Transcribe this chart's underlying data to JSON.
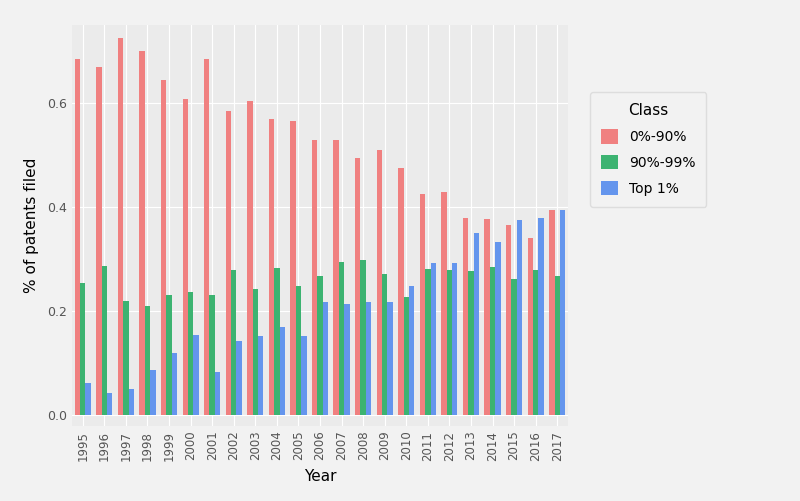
{
  "years": [
    1995,
    1996,
    1997,
    1998,
    1999,
    2000,
    2001,
    2002,
    2003,
    2004,
    2005,
    2006,
    2007,
    2008,
    2009,
    2010,
    2011,
    2012,
    2013,
    2014,
    2015,
    2016,
    2017
  ],
  "class_0_90": [
    0.685,
    0.67,
    0.725,
    0.7,
    0.645,
    0.607,
    0.685,
    0.585,
    0.605,
    0.57,
    0.565,
    0.53,
    0.53,
    0.495,
    0.51,
    0.475,
    0.425,
    0.43,
    0.38,
    0.378,
    0.365,
    0.34,
    0.395
  ],
  "class_90_99": [
    0.255,
    0.288,
    0.22,
    0.21,
    0.232,
    0.237,
    0.232,
    0.28,
    0.243,
    0.283,
    0.248,
    0.268,
    0.295,
    0.298,
    0.272,
    0.227,
    0.282,
    0.28,
    0.278,
    0.285,
    0.263,
    0.28,
    0.268
  ],
  "class_top1": [
    0.063,
    0.043,
    0.05,
    0.088,
    0.12,
    0.155,
    0.083,
    0.143,
    0.152,
    0.17,
    0.152,
    0.218,
    0.215,
    0.217,
    0.218,
    0.248,
    0.293,
    0.293,
    0.35,
    0.333,
    0.375,
    0.38,
    0.395
  ],
  "color_0_90": "#F08080",
  "color_90_99": "#3CB371",
  "color_top1": "#6495ED",
  "ylabel": "% of patents filed",
  "xlabel": "Year",
  "ylim": [
    -0.02,
    0.75
  ],
  "yticks": [
    0.0,
    0.2,
    0.4,
    0.6
  ],
  "plot_bg": "#EBEBEB",
  "fig_bg": "#F2F2F2",
  "grid_color": "#FFFFFF",
  "legend_title": "Class",
  "legend_labels": [
    "0%-90%",
    "90%-99%",
    "Top 1%"
  ]
}
